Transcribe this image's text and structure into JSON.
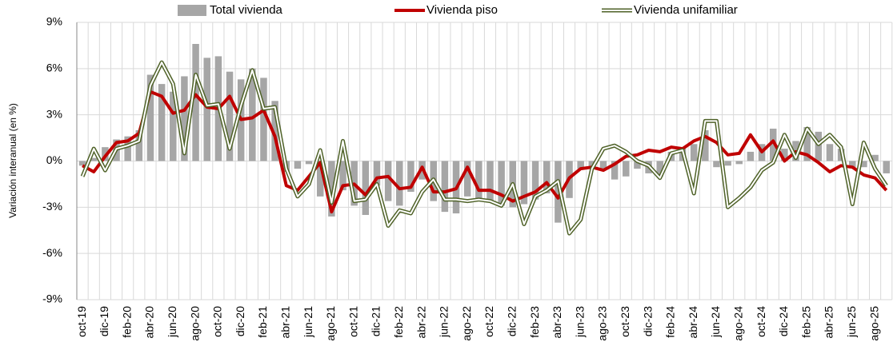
{
  "chart_data": {
    "type": "bar-line",
    "y_label": "Variación interanual (en %)",
    "categories": [
      "oct-19",
      null,
      "dic-19",
      null,
      "feb-20",
      null,
      "abr-20",
      null,
      "jun-20",
      null,
      "ago-20",
      null,
      "oct-20",
      null,
      "dic-20",
      null,
      "feb-21",
      null,
      "abr-21",
      null,
      "jun-21",
      null,
      "ago-21",
      null,
      "oct-21",
      null,
      "dic-21",
      null,
      "feb-22",
      null,
      "abr-22",
      null,
      "jun-22",
      null,
      "ago-22",
      null,
      "oct-22",
      null,
      "dic-22",
      null,
      "feb-23",
      null,
      "abr-23",
      null,
      "jun-23",
      null,
      "ago-23",
      null,
      "oct-23",
      null,
      "dic-23",
      null,
      "feb-24",
      null,
      "abr-24",
      null,
      "jun-24",
      null,
      "ago-24",
      null,
      "oct-24",
      null,
      "dic-24",
      null,
      "feb-25",
      null,
      "abr-25",
      null,
      "jun-25",
      null,
      "ago-25",
      null
    ],
    "series": [
      {
        "name": "Total vivienda",
        "kind": "bar",
        "color": "#a6a6a6",
        "values": [
          -0.3,
          0.2,
          0.9,
          1.4,
          1.6,
          2.0,
          5.6,
          5.0,
          4.5,
          5.5,
          7.6,
          6.7,
          6.8,
          5.8,
          5.3,
          6.0,
          5.4,
          3.9,
          -0.7,
          -0.5,
          -0.2,
          -2.3,
          -3.6,
          -1.9,
          -2.9,
          -3.5,
          -1.6,
          -2.6,
          -2.9,
          -2.0,
          -1.2,
          -2.6,
          -3.3,
          -3.4,
          -2.3,
          -2.5,
          -2.6,
          -2.9,
          -3.0,
          -2.8,
          -2.5,
          -2.1,
          -4.0,
          -2.4,
          -0.5,
          -0.5,
          -0.5,
          -1.2,
          -1.0,
          -0.5,
          -0.8,
          -1.0,
          0.6,
          0.8,
          1.1,
          2.0,
          -0.4,
          -0.3,
          -0.2,
          0.6,
          1.1,
          2.1,
          0.8,
          1.3,
          2.2,
          1.9,
          1.1,
          0.8,
          -0.4,
          -0.4,
          0.4,
          -0.8
        ]
      },
      {
        "name": "Vivienda piso",
        "kind": "line",
        "color": "#c00000",
        "values": [
          -0.3,
          -0.7,
          0.3,
          1.2,
          1.3,
          1.8,
          4.5,
          4.2,
          3.1,
          3.3,
          4.3,
          3.5,
          3.4,
          4.2,
          2.7,
          2.8,
          3.3,
          1.6,
          -1.6,
          -1.9,
          -1.0,
          -0.1,
          -3.3,
          -1.6,
          -1.5,
          -2.2,
          -1.1,
          -1.0,
          -1.8,
          -1.7,
          -0.4,
          -2.0,
          -2.0,
          -1.8,
          -0.4,
          -1.9,
          -1.9,
          -2.2,
          -2.6,
          -2.3,
          -2.0,
          -1.4,
          -2.4,
          -1.1,
          -0.5,
          -0.4,
          -0.6,
          -0.2,
          0.3,
          0.4,
          0.7,
          0.6,
          0.9,
          0.8,
          1.3,
          1.6,
          1.2,
          0.4,
          0.5,
          1.7,
          0.6,
          1.3,
          0.0,
          0.6,
          0.4,
          -0.1,
          -0.7,
          -0.3,
          -0.4,
          -0.9,
          -1.1,
          -1.9
        ]
      },
      {
        "name": "Vivienda unifamiliar",
        "kind": "double-line",
        "color": "#4f6228",
        "values": [
          -1.0,
          0.8,
          -0.6,
          0.8,
          1.0,
          1.3,
          4.9,
          6.4,
          5.0,
          0.5,
          5.6,
          3.6,
          3.7,
          0.8,
          3.6,
          5.9,
          3.4,
          3.5,
          -0.5,
          -2.3,
          -1.5,
          0.7,
          -2.7,
          1.3,
          -2.6,
          -2.5,
          -1.5,
          -4.2,
          -3.2,
          -3.4,
          -2.0,
          -1.2,
          -2.5,
          -2.5,
          -2.6,
          -2.5,
          -2.6,
          -2.9,
          -1.5,
          -4.1,
          -2.3,
          -1.9,
          -1.3,
          -4.7,
          -3.8,
          -0.5,
          0.8,
          1.0,
          0.6,
          0.0,
          -0.3,
          -1.1,
          0.5,
          0.7,
          -2.1,
          2.6,
          2.6,
          -3.0,
          -2.4,
          -1.7,
          -0.6,
          -0.1,
          1.7,
          0.2,
          2.1,
          1.1,
          1.7,
          0.9,
          -2.8,
          1.2,
          -0.5,
          -1.6
        ]
      }
    ],
    "ylim": [
      -9,
      9
    ],
    "yticks": [
      {
        "value": -9,
        "label": "-9%"
      },
      {
        "value": -6,
        "label": "-6%"
      },
      {
        "value": -3,
        "label": "-3%"
      },
      {
        "value": 0,
        "label": "0%"
      },
      {
        "value": 3,
        "label": "3%"
      },
      {
        "value": 6,
        "label": "6%"
      },
      {
        "value": 9,
        "label": "9%"
      }
    ],
    "grid": true
  }
}
